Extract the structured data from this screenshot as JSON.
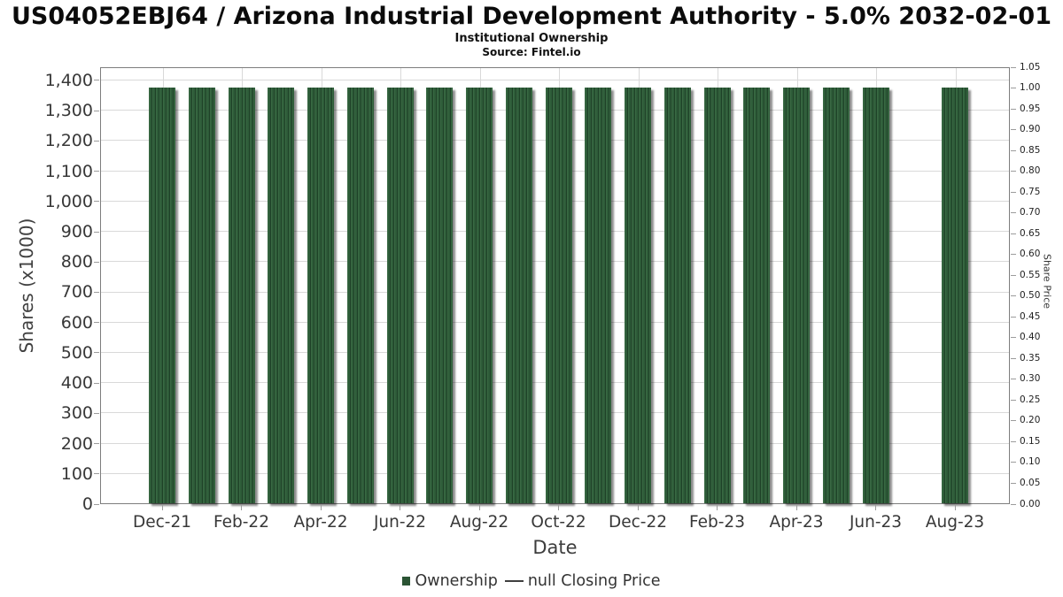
{
  "chart_data": {
    "type": "bar",
    "title": "US04052EBJ64 / Arizona Industrial Development Authority - 5.0% 2032-02-01",
    "subtitle": "Institutional Ownership",
    "source": "Source: Fintel.io",
    "xlabel": "Date",
    "ylabel_left": "Shares (x1000)",
    "ylabel_right": "Share Price",
    "categories": [
      "Dec-21",
      "Jan-22",
      "Feb-22",
      "Mar-22",
      "Apr-22",
      "May-22",
      "Jun-22",
      "Jul-22",
      "Aug-22",
      "Sep-22",
      "Oct-22",
      "Nov-22",
      "Dec-22",
      "Jan-23",
      "Feb-23",
      "Mar-23",
      "Apr-23",
      "May-23",
      "Jun-23",
      "Jul-23",
      "Aug-23"
    ],
    "series": [
      {
        "name": "Ownership",
        "axis": "left",
        "values": [
          1375,
          1375,
          1375,
          1375,
          1375,
          1375,
          1375,
          1375,
          1375,
          1375,
          1375,
          1375,
          1375,
          1375,
          1375,
          1375,
          1375,
          1375,
          1375,
          null,
          1375
        ]
      },
      {
        "name": "null Closing Price",
        "axis": "right",
        "values": []
      }
    ],
    "ylim_left": [
      0,
      1443.75
    ],
    "ytick_labels_left": [
      "0",
      "100",
      "200",
      "300",
      "400",
      "500",
      "600",
      "700",
      "800",
      "900",
      "1,000",
      "1,100",
      "1,200",
      "1,300",
      "1,400"
    ],
    "ylim_right": [
      0,
      1.05
    ],
    "ytick_labels_right": [
      "0.00",
      "0.05",
      "0.10",
      "0.15",
      "0.20",
      "0.25",
      "0.30",
      "0.35",
      "0.40",
      "0.45",
      "0.50",
      "0.55",
      "0.60",
      "0.65",
      "0.70",
      "0.75",
      "0.80",
      "0.85",
      "0.90",
      "0.95",
      "1.00",
      "1.05"
    ],
    "xtick_labels": [
      "Dec-21",
      "Feb-22",
      "Apr-22",
      "Jun-22",
      "Aug-22",
      "Oct-22",
      "Dec-22",
      "Feb-23",
      "Apr-23",
      "Jun-23",
      "Aug-23"
    ],
    "xtick_every": 2,
    "grid": true,
    "legend_position": "bottom",
    "legend": [
      {
        "label": "Ownership",
        "marker": "square",
        "color": "#2b5434"
      },
      {
        "label": "null Closing Price",
        "marker": "line",
        "color": "#3f3f3f"
      }
    ],
    "colors": {
      "bar": "#2e5c39",
      "bar_stripe_dark": "#1e4127",
      "bar_stripe_light": "#3a6a44",
      "bar_shadow": "rgba(0,0,0,0.45)",
      "grid": "#d9d9d9",
      "border": "#7d7d7d",
      "tick": "#9c9c9c"
    }
  }
}
